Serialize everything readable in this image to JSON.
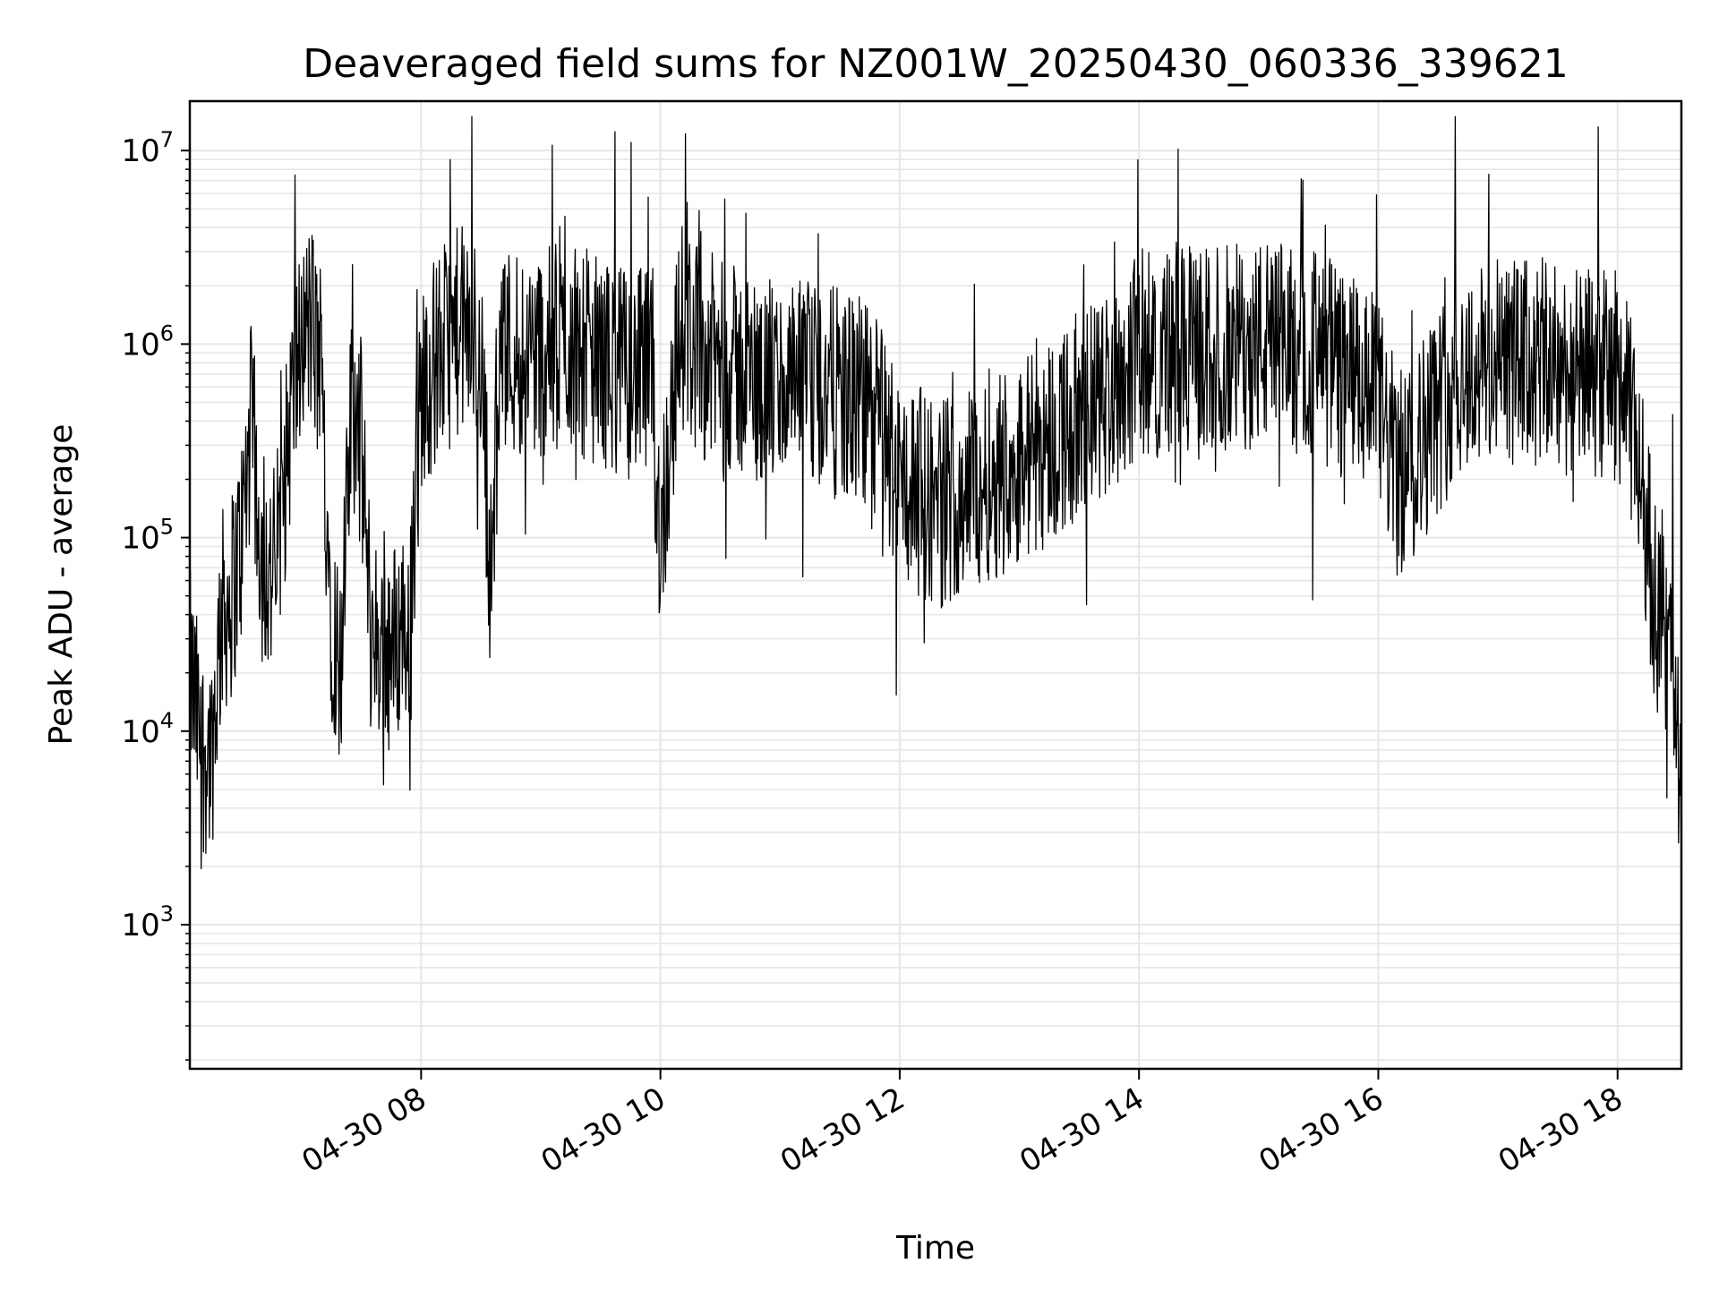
{
  "chart_data": {
    "type": "line",
    "title": "Deaveraged field sums for NZ001W_20250430_060336_339621",
    "xlabel": "Time",
    "ylabel": "Peak ADU - average",
    "y_scale": "log",
    "ylim": [
      180,
      18000000
    ],
    "xlim": [
      "2025-04-30 06:04",
      "2025-04-30 18:32"
    ],
    "grid": true,
    "line_color": "#000000",
    "grid_color": "#e6e6e6",
    "x_ticks": [
      {
        "label": "04-30 08",
        "time": "2025-04-30 08:00"
      },
      {
        "label": "04-30 10",
        "time": "2025-04-30 10:00"
      },
      {
        "label": "04-30 12",
        "time": "2025-04-30 12:00"
      },
      {
        "label": "04-30 14",
        "time": "2025-04-30 14:00"
      },
      {
        "label": "04-30 16",
        "time": "2025-04-30 16:00"
      },
      {
        "label": "04-30 18",
        "time": "2025-04-30 18:00"
      }
    ],
    "y_ticks": [
      {
        "base": "10",
        "exp": "3",
        "value": 1000
      },
      {
        "base": "10",
        "exp": "4",
        "value": 10000
      },
      {
        "base": "10",
        "exp": "5",
        "value": 100000
      },
      {
        "base": "10",
        "exp": "6",
        "value": 1000000
      },
      {
        "base": "10",
        "exp": "7",
        "value": 10000000
      }
    ],
    "series": [
      {
        "x": [
          "2025-04-30 06:04",
          "2025-04-30 06:10",
          "2025-04-30 06:15",
          "2025-04-30 06:20",
          "2025-04-30 06:25",
          "2025-04-30 06:30",
          "2025-04-30 06:35",
          "2025-04-30 06:40",
          "2025-04-30 06:45",
          "2025-04-30 06:50",
          "2025-04-30 06:55",
          "2025-04-30 07:00",
          "2025-04-30 07:05",
          "2025-04-30 07:10",
          "2025-04-30 07:15",
          "2025-04-30 07:20",
          "2025-04-30 07:25",
          "2025-04-30 07:30",
          "2025-04-30 07:35",
          "2025-04-30 07:40",
          "2025-04-30 07:45",
          "2025-04-30 07:50",
          "2025-04-30 07:55",
          "2025-04-30 08:00",
          "2025-04-30 08:10",
          "2025-04-30 08:20",
          "2025-04-30 08:30",
          "2025-04-30 08:35",
          "2025-04-30 08:40",
          "2025-04-30 08:50",
          "2025-04-30 09:00",
          "2025-04-30 09:15",
          "2025-04-30 09:30",
          "2025-04-30 09:45",
          "2025-04-30 09:55",
          "2025-04-30 10:00",
          "2025-04-30 10:10",
          "2025-04-30 10:20",
          "2025-04-30 10:40",
          "2025-04-30 11:00",
          "2025-04-30 11:20",
          "2025-04-30 11:40",
          "2025-04-30 11:50",
          "2025-04-30 12:00",
          "2025-04-30 12:20",
          "2025-04-30 12:40",
          "2025-04-30 13:00",
          "2025-04-30 13:20",
          "2025-04-30 13:40",
          "2025-04-30 14:00",
          "2025-04-30 14:30",
          "2025-04-30 15:00",
          "2025-04-30 15:30",
          "2025-04-30 16:00",
          "2025-04-30 16:10",
          "2025-04-30 16:20",
          "2025-04-30 16:40",
          "2025-04-30 17:00",
          "2025-04-30 17:20",
          "2025-04-30 17:40",
          "2025-04-30 18:00",
          "2025-04-30 18:10",
          "2025-04-30 18:15",
          "2025-04-30 18:20",
          "2025-04-30 18:25",
          "2025-04-30 18:30",
          "2025-04-30 18:32"
        ],
        "y": [
          20000,
          8000,
          8000,
          40000,
          50000,
          100000,
          400000,
          80000,
          60000,
          120000,
          500000,
          1000000,
          1300000,
          600000,
          40000,
          20000,
          500000,
          300000,
          30000,
          30000,
          25000,
          35000,
          40000,
          600000,
          900000,
          1200000,
          900000,
          60000,
          1000000,
          900000,
          900000,
          1000000,
          800000,
          700000,
          700000,
          100000,
          1300000,
          900000,
          700000,
          600000,
          600000,
          500000,
          400000,
          200000,
          150000,
          200000,
          250000,
          350000,
          500000,
          900000,
          900000,
          1000000,
          900000,
          500000,
          200000,
          300000,
          700000,
          800000,
          800000,
          700000,
          700000,
          300000,
          100000,
          40000,
          25000,
          15000,
          2000
        ]
      }
    ]
  }
}
